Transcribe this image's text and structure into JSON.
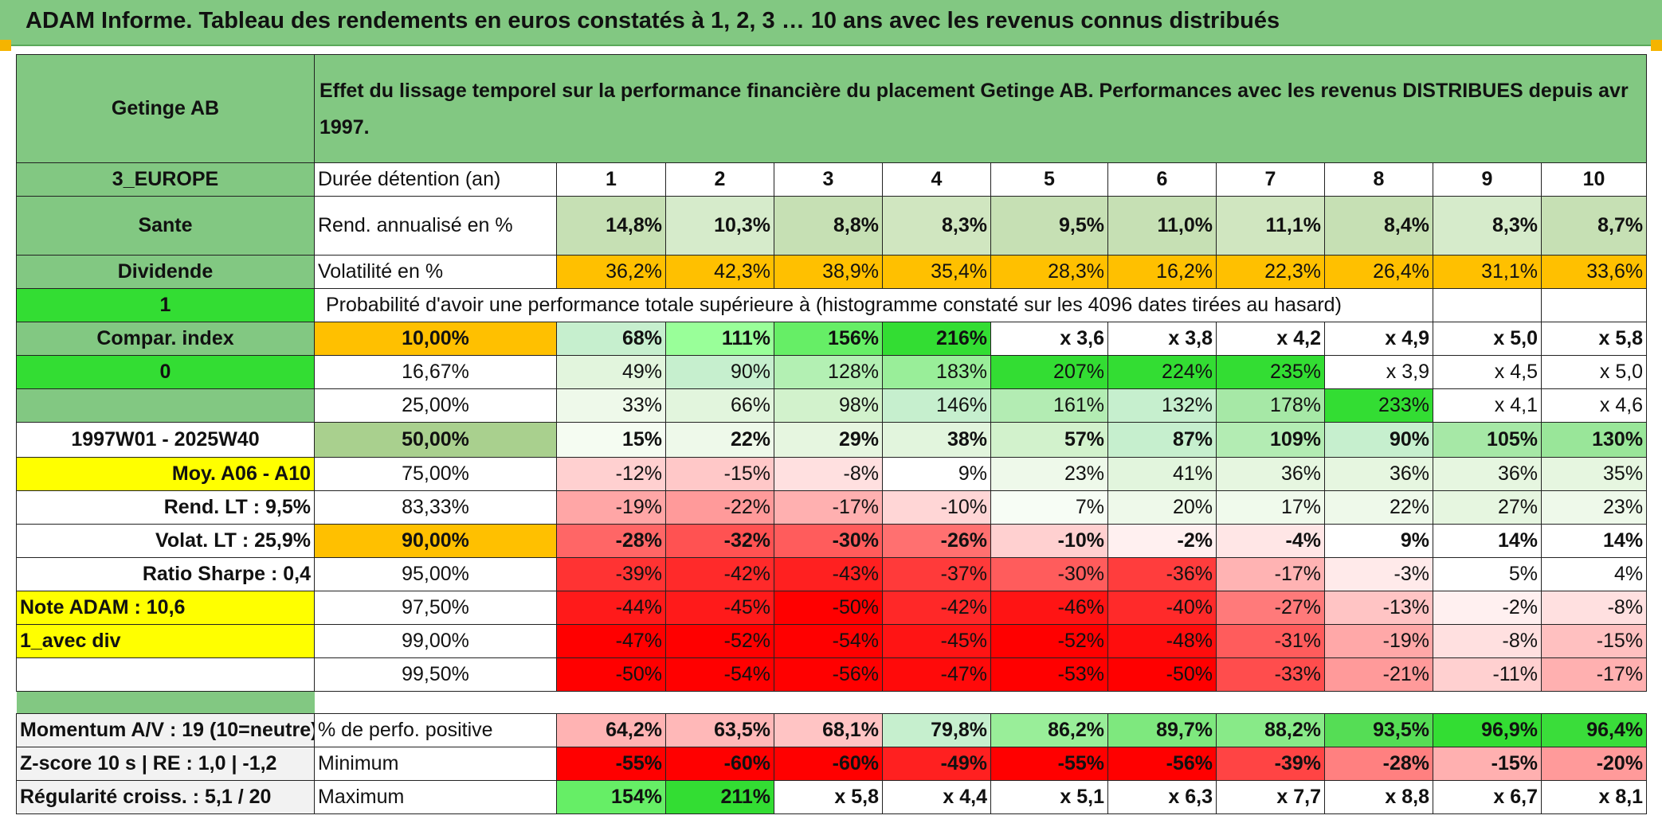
{
  "title": "ADAM Informe. Tableau des rendements en euros constatés à 1, 2, 3 … 10 ans avec les revenus connus distribués",
  "header": {
    "name": "Getinge AB",
    "description": "Effet du lissage temporel sur la performance financière du placement Getinge AB. Performances avec les revenus DISTRIBUES depuis avr 1997."
  },
  "left": {
    "region": "3_EUROPE",
    "sector": "Sante",
    "dividend": "Dividende",
    "one": "1",
    "compar": "Compar. index",
    "zero": "0",
    "period": "1997W01 - 2025W40",
    "moy": "Moy. A06 - A10",
    "rend_lt": "Rend. LT :   9,5%",
    "volat_lt": "Volat. LT :   25,9%",
    "sharpe": "Ratio Sharpe :   0,4",
    "note": "Note ADAM : 10,6",
    "avec_div": "1_avec div"
  },
  "labels": {
    "duree": "Durée détention (an)",
    "rend": "Rend. annualisé en %",
    "vol": "Volatilité en %",
    "proba": "Probabilité d'avoir une performance totale supérieure à (histogramme constaté sur les 4096 dates tirées au hasard)"
  },
  "years": [
    "1",
    "2",
    "3",
    "4",
    "5",
    "6",
    "7",
    "8",
    "9",
    "10"
  ],
  "rend": [
    "14,8%",
    "10,3%",
    "8,8%",
    "8,3%",
    "9,5%",
    "11,0%",
    "11,1%",
    "8,4%",
    "8,3%",
    "8,7%"
  ],
  "vol": [
    "36,2%",
    "42,3%",
    "38,9%",
    "35,4%",
    "28,3%",
    "16,2%",
    "22,3%",
    "26,4%",
    "31,1%",
    "33,6%"
  ],
  "prob_rows": [
    {
      "p": "10,00%",
      "v": [
        "68%",
        "111%",
        "156%",
        "216%",
        "x 3,6",
        "x 3,8",
        "x 4,2",
        "x 4,9",
        "x 5,0",
        "x 5,8"
      ]
    },
    {
      "p": "16,67%",
      "v": [
        "49%",
        "90%",
        "128%",
        "183%",
        "207%",
        "224%",
        "235%",
        "x 3,9",
        "x 4,5",
        "x 5,0"
      ]
    },
    {
      "p": "25,00%",
      "v": [
        "33%",
        "66%",
        "98%",
        "146%",
        "161%",
        "132%",
        "178%",
        "233%",
        "x 4,1",
        "x 4,6"
      ]
    },
    {
      "p": "50,00%",
      "v": [
        "15%",
        "22%",
        "29%",
        "38%",
        "57%",
        "87%",
        "109%",
        "90%",
        "105%",
        "130%"
      ]
    },
    {
      "p": "75,00%",
      "v": [
        "-12%",
        "-15%",
        "-8%",
        "9%",
        "23%",
        "41%",
        "36%",
        "36%",
        "36%",
        "35%"
      ]
    },
    {
      "p": "83,33%",
      "v": [
        "-19%",
        "-22%",
        "-17%",
        "-10%",
        "7%",
        "20%",
        "17%",
        "22%",
        "27%",
        "23%"
      ]
    },
    {
      "p": "90,00%",
      "v": [
        "-28%",
        "-32%",
        "-30%",
        "-26%",
        "-10%",
        "-2%",
        "-4%",
        "9%",
        "14%",
        "14%"
      ]
    },
    {
      "p": "95,00%",
      "v": [
        "-39%",
        "-42%",
        "-43%",
        "-37%",
        "-30%",
        "-36%",
        "-17%",
        "-3%",
        "5%",
        "4%"
      ]
    },
    {
      "p": "97,50%",
      "v": [
        "-44%",
        "-45%",
        "-50%",
        "-42%",
        "-46%",
        "-40%",
        "-27%",
        "-13%",
        "-2%",
        "-8%"
      ]
    },
    {
      "p": "99,00%",
      "v": [
        "-47%",
        "-52%",
        "-54%",
        "-45%",
        "-52%",
        "-48%",
        "-31%",
        "-19%",
        "-8%",
        "-15%"
      ]
    },
    {
      "p": "99,50%",
      "v": [
        "-50%",
        "-54%",
        "-56%",
        "-47%",
        "-53%",
        "-50%",
        "-33%",
        "-21%",
        "-11%",
        "-17%"
      ]
    }
  ],
  "stats": {
    "momentum": "Momentum A/V : 19 (10=neutre)",
    "zscore": "Z-score 10 s | RE : 1,0 | -1,2",
    "regularite": "Régularité croiss. : 5,1 / 20",
    "pos_label": "% de perfo. positive",
    "min_label": "Minimum",
    "max_label": "Maximum",
    "pos": [
      "64,2%",
      "63,5%",
      "68,1%",
      "79,8%",
      "86,2%",
      "89,7%",
      "88,2%",
      "93,5%",
      "96,9%",
      "96,4%"
    ],
    "min": [
      "-55%",
      "-60%",
      "-60%",
      "-49%",
      "-55%",
      "-56%",
      "-39%",
      "-28%",
      "-15%",
      "-20%"
    ],
    "max": [
      "154%",
      "211%",
      "x 5,8",
      "x 4,4",
      "x 5,1",
      "x 6,3",
      "x 7,7",
      "x 8,8",
      "x 6,7",
      "x 8,1"
    ]
  },
  "colors": {
    "header_green": "#82c882",
    "bright_green": "#33dd33",
    "orange": "#ffc000",
    "yellow": "#ffff00",
    "red_text": "#d4191c",
    "rend_bg": "#c6e0b4"
  }
}
